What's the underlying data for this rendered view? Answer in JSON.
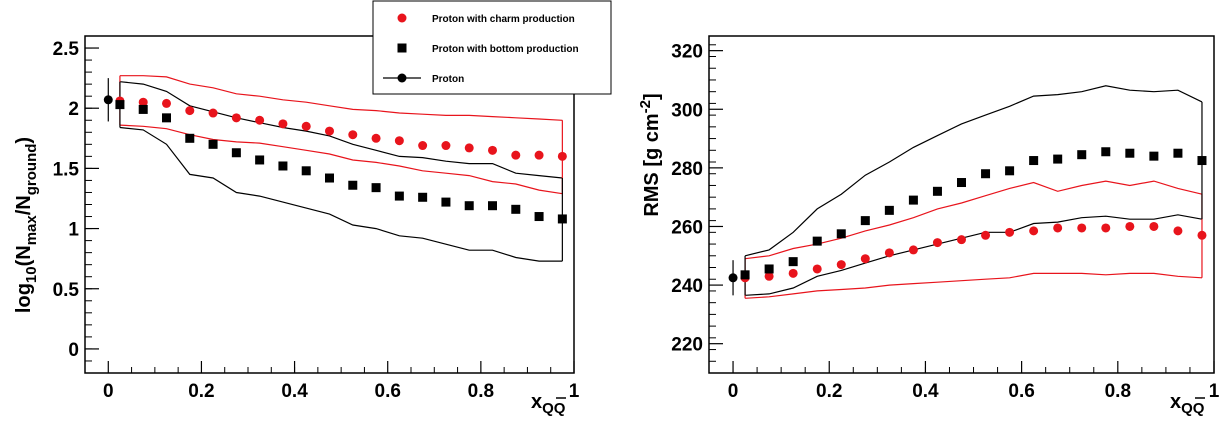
{
  "chart_data": [
    {
      "type": "scatter",
      "ylabel": "log10(Nmax/Nground)",
      "ylabel_parts": {
        "main": "log",
        "sub1": "10",
        "open": "(N",
        "sub2": "max",
        "slash": "/N",
        "sub3": "ground",
        "close": ")"
      },
      "xlabel_parts": {
        "main": "x",
        "sub": "QQ",
        "overline": "Q"
      },
      "xlim": [
        -0.05,
        1.0
      ],
      "ylim": [
        -0.2,
        2.6
      ],
      "xticks": [
        0,
        0.2,
        0.4,
        0.6,
        0.8,
        1
      ],
      "xtick_labels": [
        "0",
        "0.2",
        "0.4",
        "0.6",
        "0.8",
        "1"
      ],
      "yticks": [
        0,
        0.5,
        1,
        1.5,
        2,
        2.5
      ],
      "ytick_labels": [
        "0",
        "0.5",
        "1",
        "1.5",
        "2",
        "2.5"
      ],
      "legend": {
        "placement": "top-right",
        "entries": [
          {
            "label": "Proton with charm production",
            "marker": "circle",
            "color": "#e8141c"
          },
          {
            "label": "Proton with bottom production",
            "marker": "square",
            "color": "#000000"
          },
          {
            "label": "Proton",
            "marker": "circle-line",
            "color": "#000000"
          }
        ]
      },
      "series": [
        {
          "name": "Proton with charm production",
          "marker": "circle",
          "color": "#e8141c",
          "x": [
            0.025,
            0.075,
            0.125,
            0.175,
            0.225,
            0.275,
            0.325,
            0.375,
            0.425,
            0.475,
            0.525,
            0.575,
            0.625,
            0.675,
            0.725,
            0.775,
            0.825,
            0.875,
            0.925,
            0.975
          ],
          "y": [
            2.06,
            2.05,
            2.04,
            1.98,
            1.96,
            1.92,
            1.9,
            1.87,
            1.85,
            1.81,
            1.78,
            1.75,
            1.73,
            1.69,
            1.69,
            1.67,
            1.65,
            1.61,
            1.61,
            1.6
          ]
        },
        {
          "name": "Proton with bottom production",
          "marker": "square",
          "color": "#000000",
          "x": [
            0.025,
            0.075,
            0.125,
            0.175,
            0.225,
            0.275,
            0.325,
            0.375,
            0.425,
            0.475,
            0.525,
            0.575,
            0.625,
            0.675,
            0.725,
            0.775,
            0.825,
            0.875,
            0.925,
            0.975
          ],
          "y": [
            2.03,
            1.99,
            1.92,
            1.75,
            1.7,
            1.63,
            1.57,
            1.52,
            1.48,
            1.42,
            1.36,
            1.34,
            1.27,
            1.26,
            1.22,
            1.19,
            1.19,
            1.16,
            1.1,
            1.08
          ]
        },
        {
          "name": "Proton",
          "marker": "circle-line",
          "color": "#000000",
          "x": [
            0.0
          ],
          "y": [
            2.07
          ],
          "yerr": [
            0.18
          ]
        }
      ],
      "bands": [
        {
          "name": "charm-upper",
          "color": "#e8141c",
          "x": [
            0.025,
            0.075,
            0.125,
            0.175,
            0.225,
            0.275,
            0.325,
            0.375,
            0.425,
            0.475,
            0.525,
            0.575,
            0.625,
            0.675,
            0.725,
            0.775,
            0.825,
            0.875,
            0.925,
            0.975
          ],
          "y": [
            2.27,
            2.27,
            2.26,
            2.2,
            2.17,
            2.12,
            2.1,
            2.07,
            2.05,
            2.02,
            1.99,
            1.98,
            1.96,
            1.95,
            1.94,
            1.94,
            1.93,
            1.92,
            1.91,
            1.9
          ]
        },
        {
          "name": "charm-lower",
          "color": "#e8141c",
          "x": [
            0.025,
            0.075,
            0.125,
            0.175,
            0.225,
            0.275,
            0.325,
            0.375,
            0.425,
            0.475,
            0.525,
            0.575,
            0.625,
            0.675,
            0.725,
            0.775,
            0.825,
            0.875,
            0.925,
            0.975
          ],
          "y": [
            1.86,
            1.85,
            1.83,
            1.78,
            1.74,
            1.72,
            1.71,
            1.68,
            1.65,
            1.62,
            1.57,
            1.55,
            1.52,
            1.48,
            1.46,
            1.44,
            1.39,
            1.37,
            1.32,
            1.29
          ]
        },
        {
          "name": "bottom-upper",
          "color": "#000000",
          "x": [
            0.025,
            0.075,
            0.125,
            0.175,
            0.225,
            0.275,
            0.325,
            0.375,
            0.425,
            0.475,
            0.525,
            0.575,
            0.625,
            0.675,
            0.725,
            0.775,
            0.825,
            0.875,
            0.925,
            0.975
          ],
          "y": [
            2.22,
            2.2,
            2.14,
            2.02,
            1.97,
            1.92,
            1.88,
            1.84,
            1.81,
            1.77,
            1.7,
            1.65,
            1.6,
            1.59,
            1.56,
            1.54,
            1.54,
            1.46,
            1.44,
            1.42
          ]
        },
        {
          "name": "bottom-lower",
          "color": "#000000",
          "x": [
            0.025,
            0.075,
            0.125,
            0.175,
            0.225,
            0.275,
            0.325,
            0.375,
            0.425,
            0.475,
            0.525,
            0.575,
            0.625,
            0.675,
            0.725,
            0.775,
            0.825,
            0.875,
            0.925,
            0.975
          ],
          "y": [
            1.84,
            1.82,
            1.7,
            1.45,
            1.42,
            1.3,
            1.27,
            1.22,
            1.17,
            1.12,
            1.03,
            1.0,
            0.94,
            0.92,
            0.87,
            0.82,
            0.82,
            0.76,
            0.73,
            0.73
          ]
        }
      ]
    },
    {
      "type": "scatter",
      "ylabel": "RMS [g cm-2]",
      "ylabel_parts": {
        "main": "RMS [g cm",
        "sup": "-2",
        "close": "]"
      },
      "xlabel_parts": {
        "main": "x",
        "sub": "QQ",
        "overline": "Q"
      },
      "xlim": [
        -0.05,
        1.0
      ],
      "ylim": [
        210,
        325
      ],
      "xticks": [
        0,
        0.2,
        0.4,
        0.6,
        0.8,
        1
      ],
      "xtick_labels": [
        "0",
        "0.2",
        "0.4",
        "0.6",
        "0.8",
        "1"
      ],
      "yticks": [
        220,
        240,
        260,
        280,
        300,
        320
      ],
      "ytick_labels": [
        "220",
        "240",
        "260",
        "280",
        "300",
        "320"
      ],
      "series": [
        {
          "name": "Proton with charm production",
          "marker": "circle",
          "color": "#e8141c",
          "x": [
            0.025,
            0.075,
            0.125,
            0.175,
            0.225,
            0.275,
            0.325,
            0.375,
            0.425,
            0.475,
            0.525,
            0.575,
            0.625,
            0.675,
            0.725,
            0.775,
            0.825,
            0.875,
            0.925,
            0.975
          ],
          "y": [
            242.5,
            243,
            244,
            245.5,
            247,
            249,
            251,
            252,
            254.5,
            255.5,
            257,
            258,
            258.5,
            259.5,
            259.5,
            259.5,
            260,
            260,
            258.5,
            257
          ]
        },
        {
          "name": "Proton with bottom production",
          "marker": "square",
          "color": "#000000",
          "x": [
            0.025,
            0.075,
            0.125,
            0.175,
            0.225,
            0.275,
            0.325,
            0.375,
            0.425,
            0.475,
            0.525,
            0.575,
            0.625,
            0.675,
            0.725,
            0.775,
            0.825,
            0.875,
            0.925,
            0.975
          ],
          "y": [
            243.5,
            245.5,
            248,
            255,
            257.5,
            262,
            265.5,
            269,
            272,
            275,
            278,
            279,
            282.5,
            283,
            284.5,
            285.5,
            285,
            284,
            285,
            282.5
          ]
        },
        {
          "name": "Proton",
          "marker": "circle-line",
          "color": "#000000",
          "x": [
            0.0
          ],
          "y": [
            242.5
          ],
          "yerr": [
            6
          ]
        }
      ],
      "bands": [
        {
          "name": "charm-upper",
          "color": "#e8141c",
          "x": [
            0.025,
            0.075,
            0.125,
            0.175,
            0.225,
            0.275,
            0.325,
            0.375,
            0.425,
            0.475,
            0.525,
            0.575,
            0.625,
            0.675,
            0.725,
            0.775,
            0.825,
            0.875,
            0.925,
            0.975
          ],
          "y": [
            249,
            250,
            252.5,
            254,
            256,
            258.5,
            260.5,
            263,
            266,
            268,
            270.5,
            273,
            275,
            272,
            274,
            275.5,
            274,
            275.5,
            273,
            271
          ]
        },
        {
          "name": "charm-lower",
          "color": "#e8141c",
          "x": [
            0.025,
            0.075,
            0.125,
            0.175,
            0.225,
            0.275,
            0.325,
            0.375,
            0.425,
            0.475,
            0.525,
            0.575,
            0.625,
            0.675,
            0.725,
            0.775,
            0.825,
            0.875,
            0.925,
            0.975
          ],
          "y": [
            235.5,
            236,
            237,
            238,
            238.5,
            239,
            240,
            240.5,
            241,
            241.5,
            242,
            242.5,
            244,
            244,
            244,
            243.5,
            244,
            244,
            243,
            242.5
          ]
        },
        {
          "name": "bottom-upper",
          "color": "#000000",
          "x": [
            0.025,
            0.075,
            0.125,
            0.175,
            0.225,
            0.275,
            0.325,
            0.375,
            0.425,
            0.475,
            0.525,
            0.575,
            0.625,
            0.675,
            0.725,
            0.775,
            0.825,
            0.875,
            0.925,
            0.975
          ],
          "y": [
            250,
            252,
            258,
            266,
            271,
            277.5,
            282,
            287,
            291,
            295,
            298,
            301,
            304.5,
            305,
            306,
            308,
            306.5,
            306,
            306.5,
            302.5
          ]
        },
        {
          "name": "bottom-lower",
          "color": "#000000",
          "x": [
            0.025,
            0.075,
            0.125,
            0.175,
            0.225,
            0.275,
            0.325,
            0.375,
            0.425,
            0.475,
            0.525,
            0.575,
            0.625,
            0.675,
            0.725,
            0.775,
            0.825,
            0.875,
            0.925,
            0.975
          ],
          "y": [
            236.5,
            237,
            239,
            243,
            245,
            247.5,
            250,
            252,
            254,
            256,
            258,
            258,
            261,
            261.5,
            263,
            263.5,
            262.5,
            262.5,
            264,
            262.5
          ]
        }
      ]
    }
  ]
}
